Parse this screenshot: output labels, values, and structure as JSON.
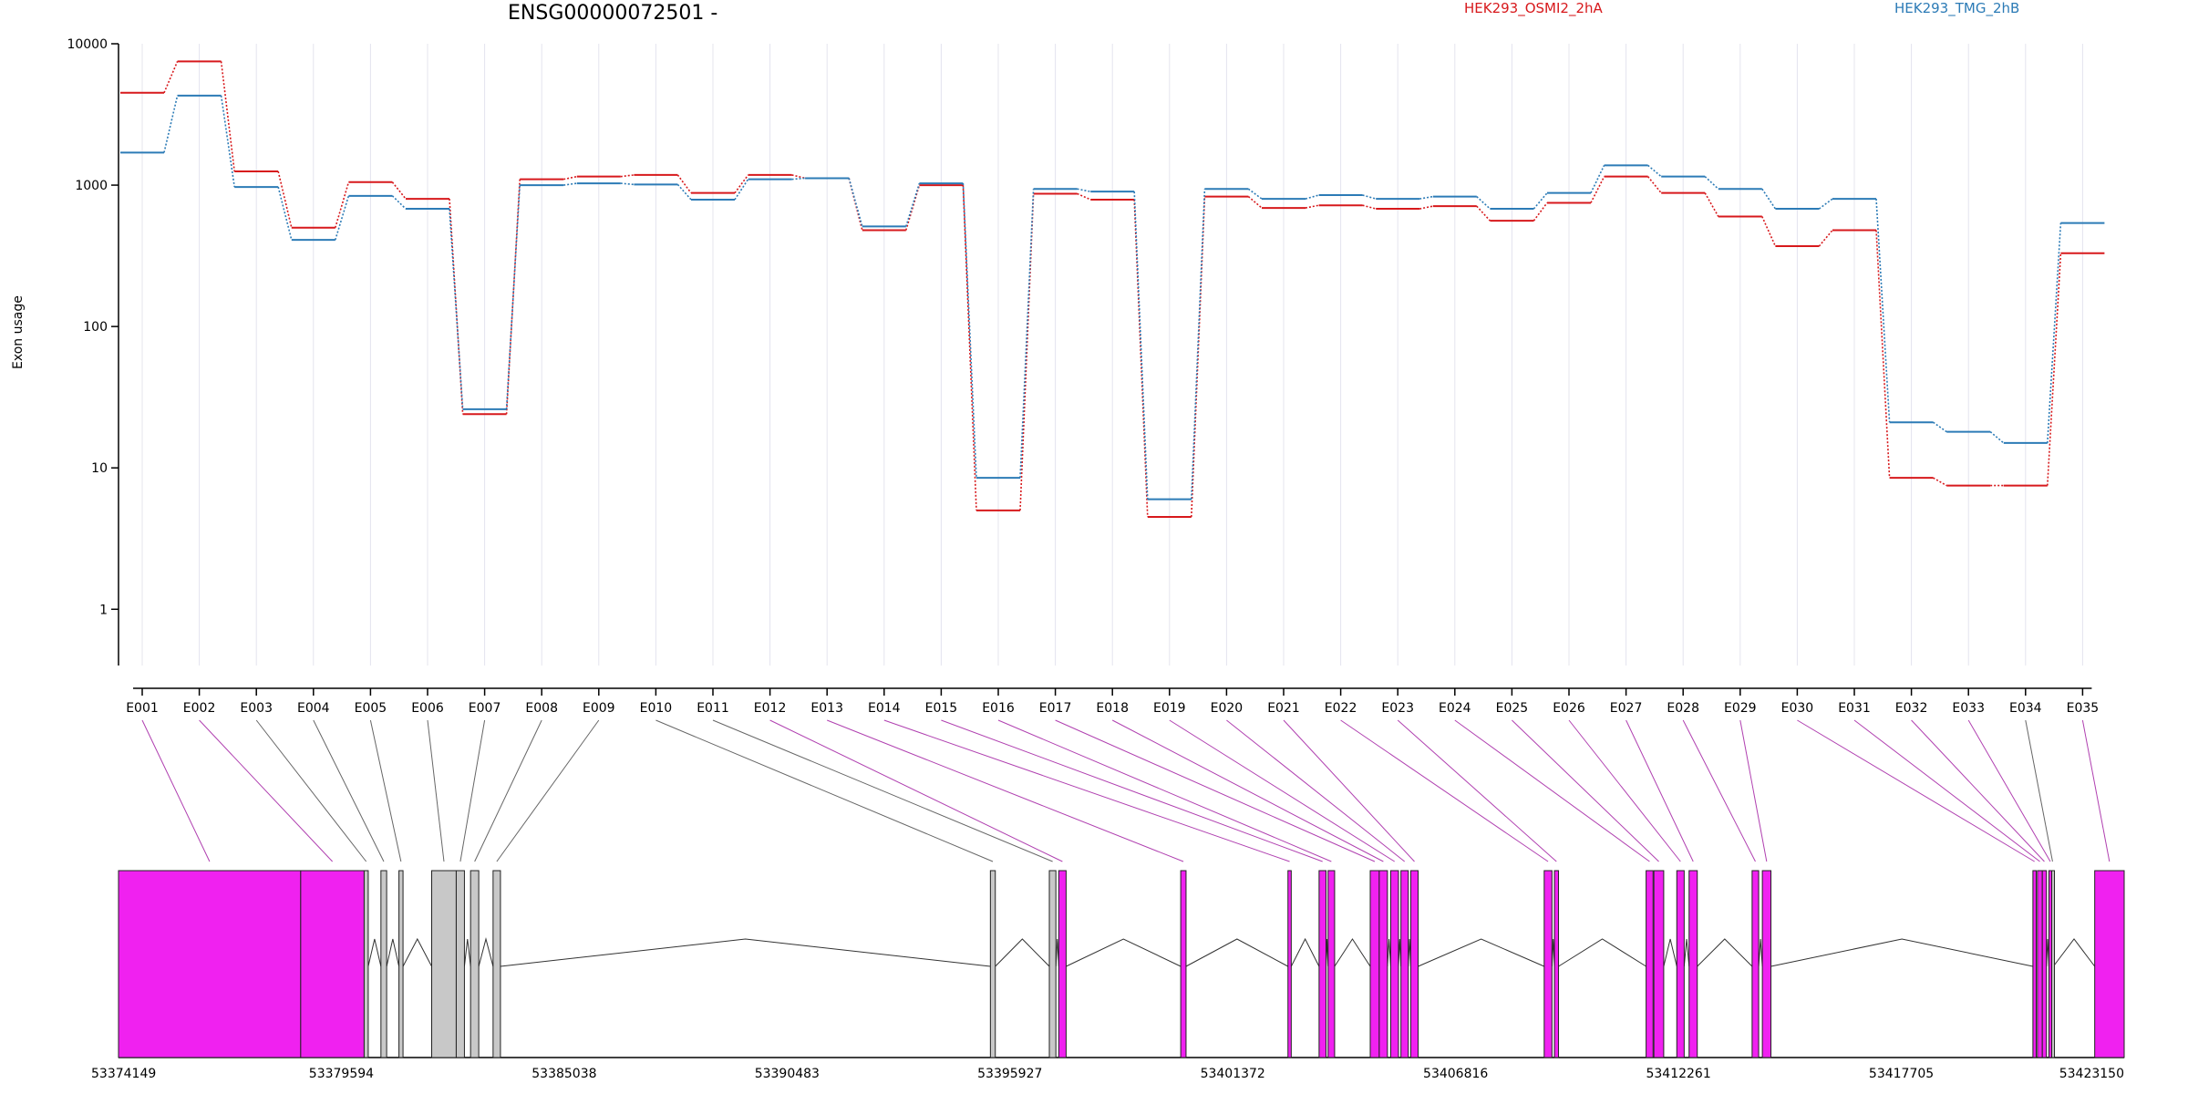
{
  "chart_data": {
    "type": "line",
    "title": "ENSG00000072501 -",
    "ylabel": "Exon usage",
    "yscale": "log",
    "ylim": [
      0.4,
      10000
    ],
    "yticks": [
      1,
      10,
      100,
      1000,
      10000
    ],
    "ytick_labels": [
      "1",
      "10",
      "100",
      "1000",
      "10000"
    ],
    "categories": [
      "E001",
      "E002",
      "E003",
      "E004",
      "E005",
      "E006",
      "E007",
      "E008",
      "E009",
      "E010",
      "E011",
      "E012",
      "E013",
      "E014",
      "E015",
      "E016",
      "E017",
      "E018",
      "E019",
      "E020",
      "E021",
      "E022",
      "E023",
      "E024",
      "E025",
      "E026",
      "E027",
      "E028",
      "E029",
      "E030",
      "E031",
      "E032",
      "E033",
      "E034",
      "E035"
    ],
    "series": [
      {
        "name": "HEK293_OSMI2_2hA",
        "color": "#d7191c",
        "values": [
          4500,
          7500,
          1250,
          500,
          1050,
          800,
          24,
          1100,
          1150,
          1180,
          880,
          1180,
          1120,
          480,
          1000,
          5,
          870,
          790,
          4.5,
          830,
          690,
          720,
          680,
          710,
          560,
          750,
          1150,
          880,
          600,
          370,
          480,
          8.5,
          7.5,
          7.5,
          330
        ]
      },
      {
        "name": "HEK293_TMG_2hB",
        "color": "#2c7bb6",
        "values": [
          1700,
          4300,
          970,
          410,
          840,
          680,
          26,
          1000,
          1030,
          1010,
          790,
          1100,
          1120,
          510,
          1030,
          8.5,
          940,
          900,
          6,
          940,
          800,
          850,
          800,
          830,
          680,
          880,
          1380,
          1150,
          940,
          680,
          800,
          21,
          18,
          15,
          540
        ]
      }
    ],
    "genomic_ticks": [
      "53374149",
      "53379594",
      "53385038",
      "53390483",
      "53395927",
      "53401372",
      "53406816",
      "53412261",
      "53417705",
      "53423150"
    ]
  },
  "colors": {
    "exon_significant": "#f021f0",
    "exon_normal": "#c8c8c8",
    "connector_significant": "#b040b0",
    "connector_normal": "#666666",
    "grid": "#e4e4ee"
  }
}
